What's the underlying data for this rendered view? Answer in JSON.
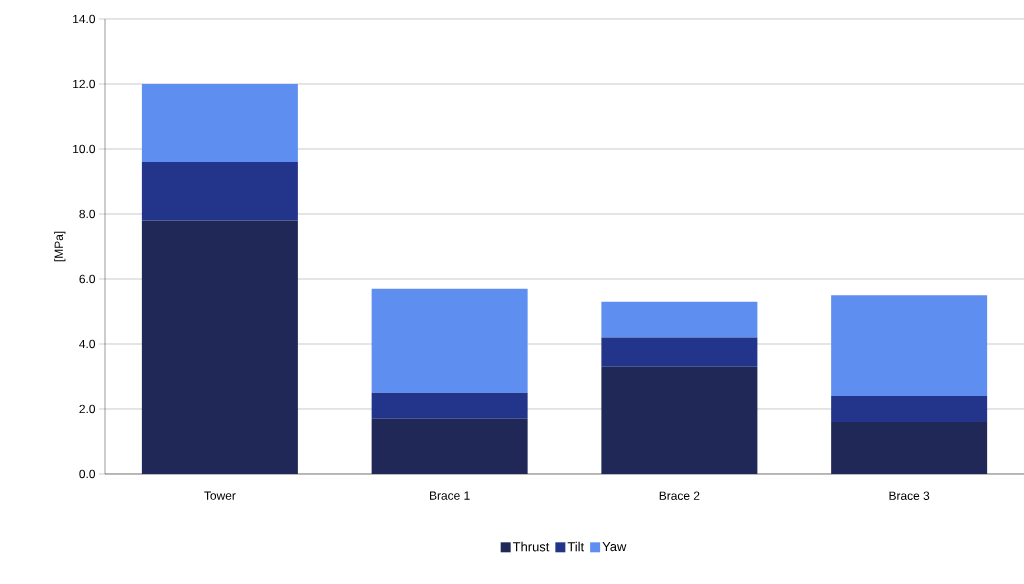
{
  "chart_data": {
    "type": "bar",
    "stacked": true,
    "ylabel": "[MPa]",
    "categories": [
      "Tower",
      "Brace 1",
      "Brace 2",
      "Brace 3"
    ],
    "series": [
      {
        "name": "Thrust",
        "color": "#1f2856",
        "values": [
          7.8,
          1.7,
          3.3,
          1.6
        ]
      },
      {
        "name": "Tilt",
        "color": "#22358a",
        "values": [
          1.8,
          0.8,
          0.9,
          0.8
        ]
      },
      {
        "name": "Yaw",
        "color": "#5e8ff0",
        "values": [
          2.4,
          3.2,
          1.1,
          3.1
        ]
      }
    ],
    "ylim": [
      0,
      14
    ],
    "yticks": [
      {
        "value": 0,
        "label": "0.0"
      },
      {
        "value": 2,
        "label": "2.0"
      },
      {
        "value": 4,
        "label": "4.0"
      },
      {
        "value": 6,
        "label": "6.0"
      },
      {
        "value": 8,
        "label": "8.0"
      },
      {
        "value": 10,
        "label": "10.0"
      },
      {
        "value": 12,
        "label": "12.0"
      },
      {
        "value": 14,
        "label": "14.0"
      }
    ],
    "grid": "y",
    "legend": "bottom"
  }
}
